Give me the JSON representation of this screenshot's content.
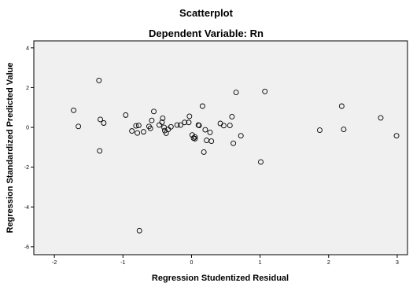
{
  "chart_data": {
    "type": "scatter",
    "title": "Scatterplot",
    "subtitle": "Dependent Variable: Rn",
    "xlabel": "Regression Studentized Residual",
    "ylabel": "Regression Standardized Predicted Value",
    "xlim": [
      -2.3,
      3.15
    ],
    "ylim": [
      -6.4,
      4.35
    ],
    "x_ticks": [
      -2,
      -1,
      0,
      1,
      2,
      3
    ],
    "y_ticks": [
      -6,
      -4,
      -2,
      0,
      2,
      4
    ],
    "x_tick_labels": [
      "-2",
      "-1",
      "0",
      "1",
      "2",
      "3"
    ],
    "y_tick_labels": [
      "-6",
      "-4",
      "-2",
      "0",
      "2",
      "4"
    ],
    "grid": false,
    "legend": "none",
    "colors": {
      "plot_background": "#f0f0f0",
      "frame": "#000000",
      "marker_edge": "#000000",
      "marker_fill": "none"
    },
    "points": [
      {
        "x": -1.72,
        "y": 0.86
      },
      {
        "x": -1.65,
        "y": 0.05
      },
      {
        "x": -1.35,
        "y": 2.36
      },
      {
        "x": -1.33,
        "y": 0.4
      },
      {
        "x": -1.28,
        "y": 0.22
      },
      {
        "x": -1.34,
        "y": -1.18
      },
      {
        "x": -0.96,
        "y": 0.62
      },
      {
        "x": -0.87,
        "y": -0.18
      },
      {
        "x": -0.81,
        "y": 0.08
      },
      {
        "x": -0.77,
        "y": 0.1
      },
      {
        "x": -0.79,
        "y": -0.28
      },
      {
        "x": -0.7,
        "y": -0.22
      },
      {
        "x": -0.62,
        "y": 0.05
      },
      {
        "x": -0.6,
        "y": -0.05
      },
      {
        "x": -0.58,
        "y": 0.35
      },
      {
        "x": -0.55,
        "y": 0.8
      },
      {
        "x": -0.47,
        "y": 0.12
      },
      {
        "x": -0.43,
        "y": 0.26
      },
      {
        "x": -0.42,
        "y": 0.46
      },
      {
        "x": -0.4,
        "y": 0.0
      },
      {
        "x": -0.39,
        "y": -0.16
      },
      {
        "x": -0.37,
        "y": -0.29
      },
      {
        "x": -0.34,
        "y": -0.1
      },
      {
        "x": -0.3,
        "y": 0.03
      },
      {
        "x": -0.21,
        "y": 0.12
      },
      {
        "x": -0.16,
        "y": 0.12
      },
      {
        "x": -0.1,
        "y": 0.25
      },
      {
        "x": -0.04,
        "y": 0.25
      },
      {
        "x": -0.03,
        "y": 0.56
      },
      {
        "x": 0.01,
        "y": -0.38
      },
      {
        "x": 0.03,
        "y": -0.54
      },
      {
        "x": 0.05,
        "y": -0.57
      },
      {
        "x": 0.05,
        "y": -0.48
      },
      {
        "x": 0.1,
        "y": 0.12
      },
      {
        "x": 0.11,
        "y": 0.1
      },
      {
        "x": 0.16,
        "y": 1.07
      },
      {
        "x": 0.18,
        "y": -1.24
      },
      {
        "x": 0.2,
        "y": -0.12
      },
      {
        "x": 0.22,
        "y": -0.65
      },
      {
        "x": 0.27,
        "y": -0.25
      },
      {
        "x": 0.29,
        "y": -0.69
      },
      {
        "x": 0.42,
        "y": 0.2
      },
      {
        "x": 0.47,
        "y": 0.09
      },
      {
        "x": 0.56,
        "y": 0.1
      },
      {
        "x": 0.59,
        "y": 0.54
      },
      {
        "x": 0.61,
        "y": -0.8
      },
      {
        "x": 0.65,
        "y": 1.76
      },
      {
        "x": 0.72,
        "y": -0.42
      },
      {
        "x": 1.01,
        "y": -1.74
      },
      {
        "x": 1.07,
        "y": 1.81
      },
      {
        "x": 1.87,
        "y": -0.14
      },
      {
        "x": 2.19,
        "y": 1.07
      },
      {
        "x": 2.22,
        "y": -0.1
      },
      {
        "x": 2.76,
        "y": 0.48
      },
      {
        "x": 2.99,
        "y": -0.42
      },
      {
        "x": -0.76,
        "y": -5.19
      }
    ]
  }
}
